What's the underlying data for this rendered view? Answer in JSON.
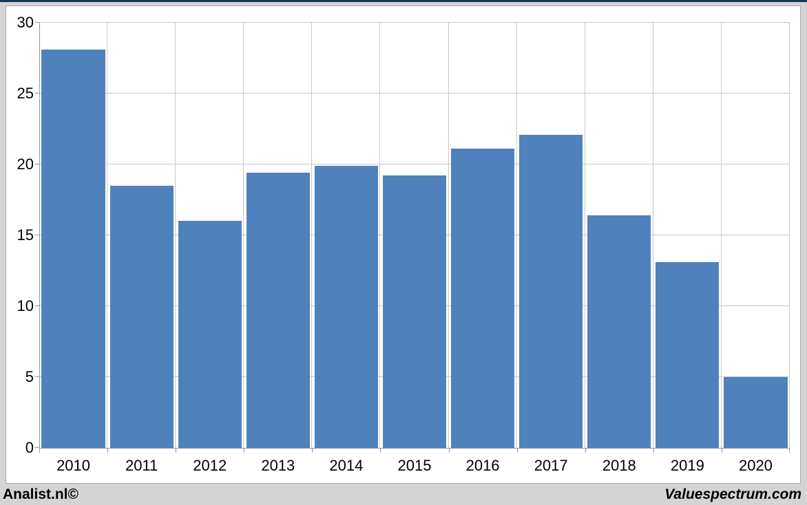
{
  "chart_data": {
    "type": "bar",
    "categories": [
      "2010",
      "2011",
      "2012",
      "2013",
      "2014",
      "2015",
      "2016",
      "2017",
      "2018",
      "2019",
      "2020"
    ],
    "values": [
      28.1,
      18.5,
      16.0,
      19.4,
      19.9,
      19.2,
      21.1,
      22.1,
      16.4,
      13.1,
      5.0
    ],
    "title": "",
    "xlabel": "",
    "ylabel": "",
    "ylim": [
      0,
      30
    ],
    "yticks": [
      0,
      5,
      10,
      15,
      20,
      25,
      30
    ],
    "grid": true,
    "legend": false,
    "bar_color": "#4F81BD"
  },
  "footer": {
    "left_label": "Analist.nl©",
    "right_label": "Valuespectrum.com"
  },
  "colors": {
    "top_accent": "#16365C",
    "page_background": "#D4D4D4",
    "panel_background": "#FFFFFF",
    "panel_border": "#A9A9A9",
    "gridline": "#C8C8C8",
    "axis": "#969696",
    "bar": "#4F81BD",
    "text": "#000000"
  }
}
